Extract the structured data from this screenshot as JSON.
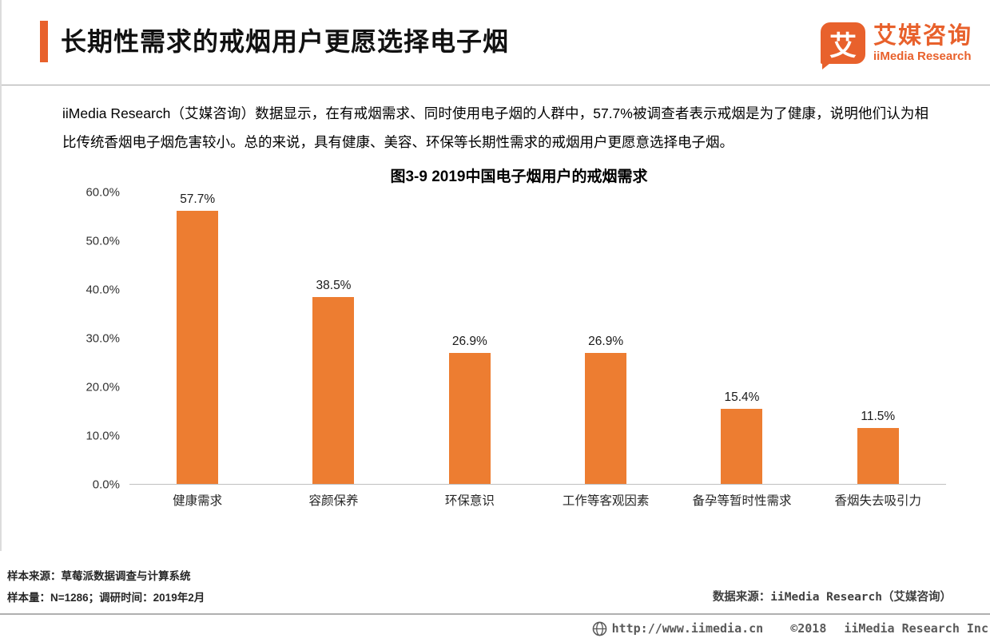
{
  "colors": {
    "brand_orange": "#E8612C",
    "bar_orange": "#ED7D31",
    "axis_line": "#BFBFBF"
  },
  "header": {
    "title": "长期性需求的戒烟用户更愿选择电子烟",
    "logo": {
      "glyph": "艾",
      "name_cn": "艾媒咨询",
      "name_en": "iiMedia Research"
    }
  },
  "intro": {
    "text": "iiMedia Research（艾媒咨询）数据显示，在有戒烟需求、同时使用电子烟的人群中，57.7%被调查者表示戒烟是为了健康，说明他们认为相比传统香烟电子烟危害较小。总的来说，具有健康、美容、环保等长期性需求的戒烟用户更愿意选择电子烟。"
  },
  "chart_data": {
    "type": "bar",
    "title": "图3-9 2019中国电子烟用户的戒烟需求",
    "categories": [
      "健康需求",
      "容颜保养",
      "环保意识",
      "工作等客观因素",
      "备孕等暂时性需求",
      "香烟失去吸引力"
    ],
    "values": [
      57.7,
      38.5,
      26.9,
      26.9,
      15.4,
      11.5
    ],
    "value_labels": [
      "57.7%",
      "38.5%",
      "26.9%",
      "26.9%",
      "15.4%",
      "11.5%"
    ],
    "y_ticks": [
      "0.0%",
      "10.0%",
      "20.0%",
      "30.0%",
      "40.0%",
      "50.0%",
      "60.0%"
    ],
    "ylim": [
      0,
      60
    ],
    "bar_color": "#ED7D31",
    "grid": false,
    "legend": "none",
    "xlabel": "",
    "ylabel": ""
  },
  "footnotes": {
    "sample_source": "样本来源：草莓派数据调查与计算系统",
    "sample_info": "样本量：N=1286；调研时间：2019年2月",
    "data_source": "数据来源：iiMedia Research（艾媒咨询）"
  },
  "footer": {
    "url": "http://www.iimedia.cn",
    "copyright": "©2018",
    "company": "iiMedia Research  Inc"
  }
}
